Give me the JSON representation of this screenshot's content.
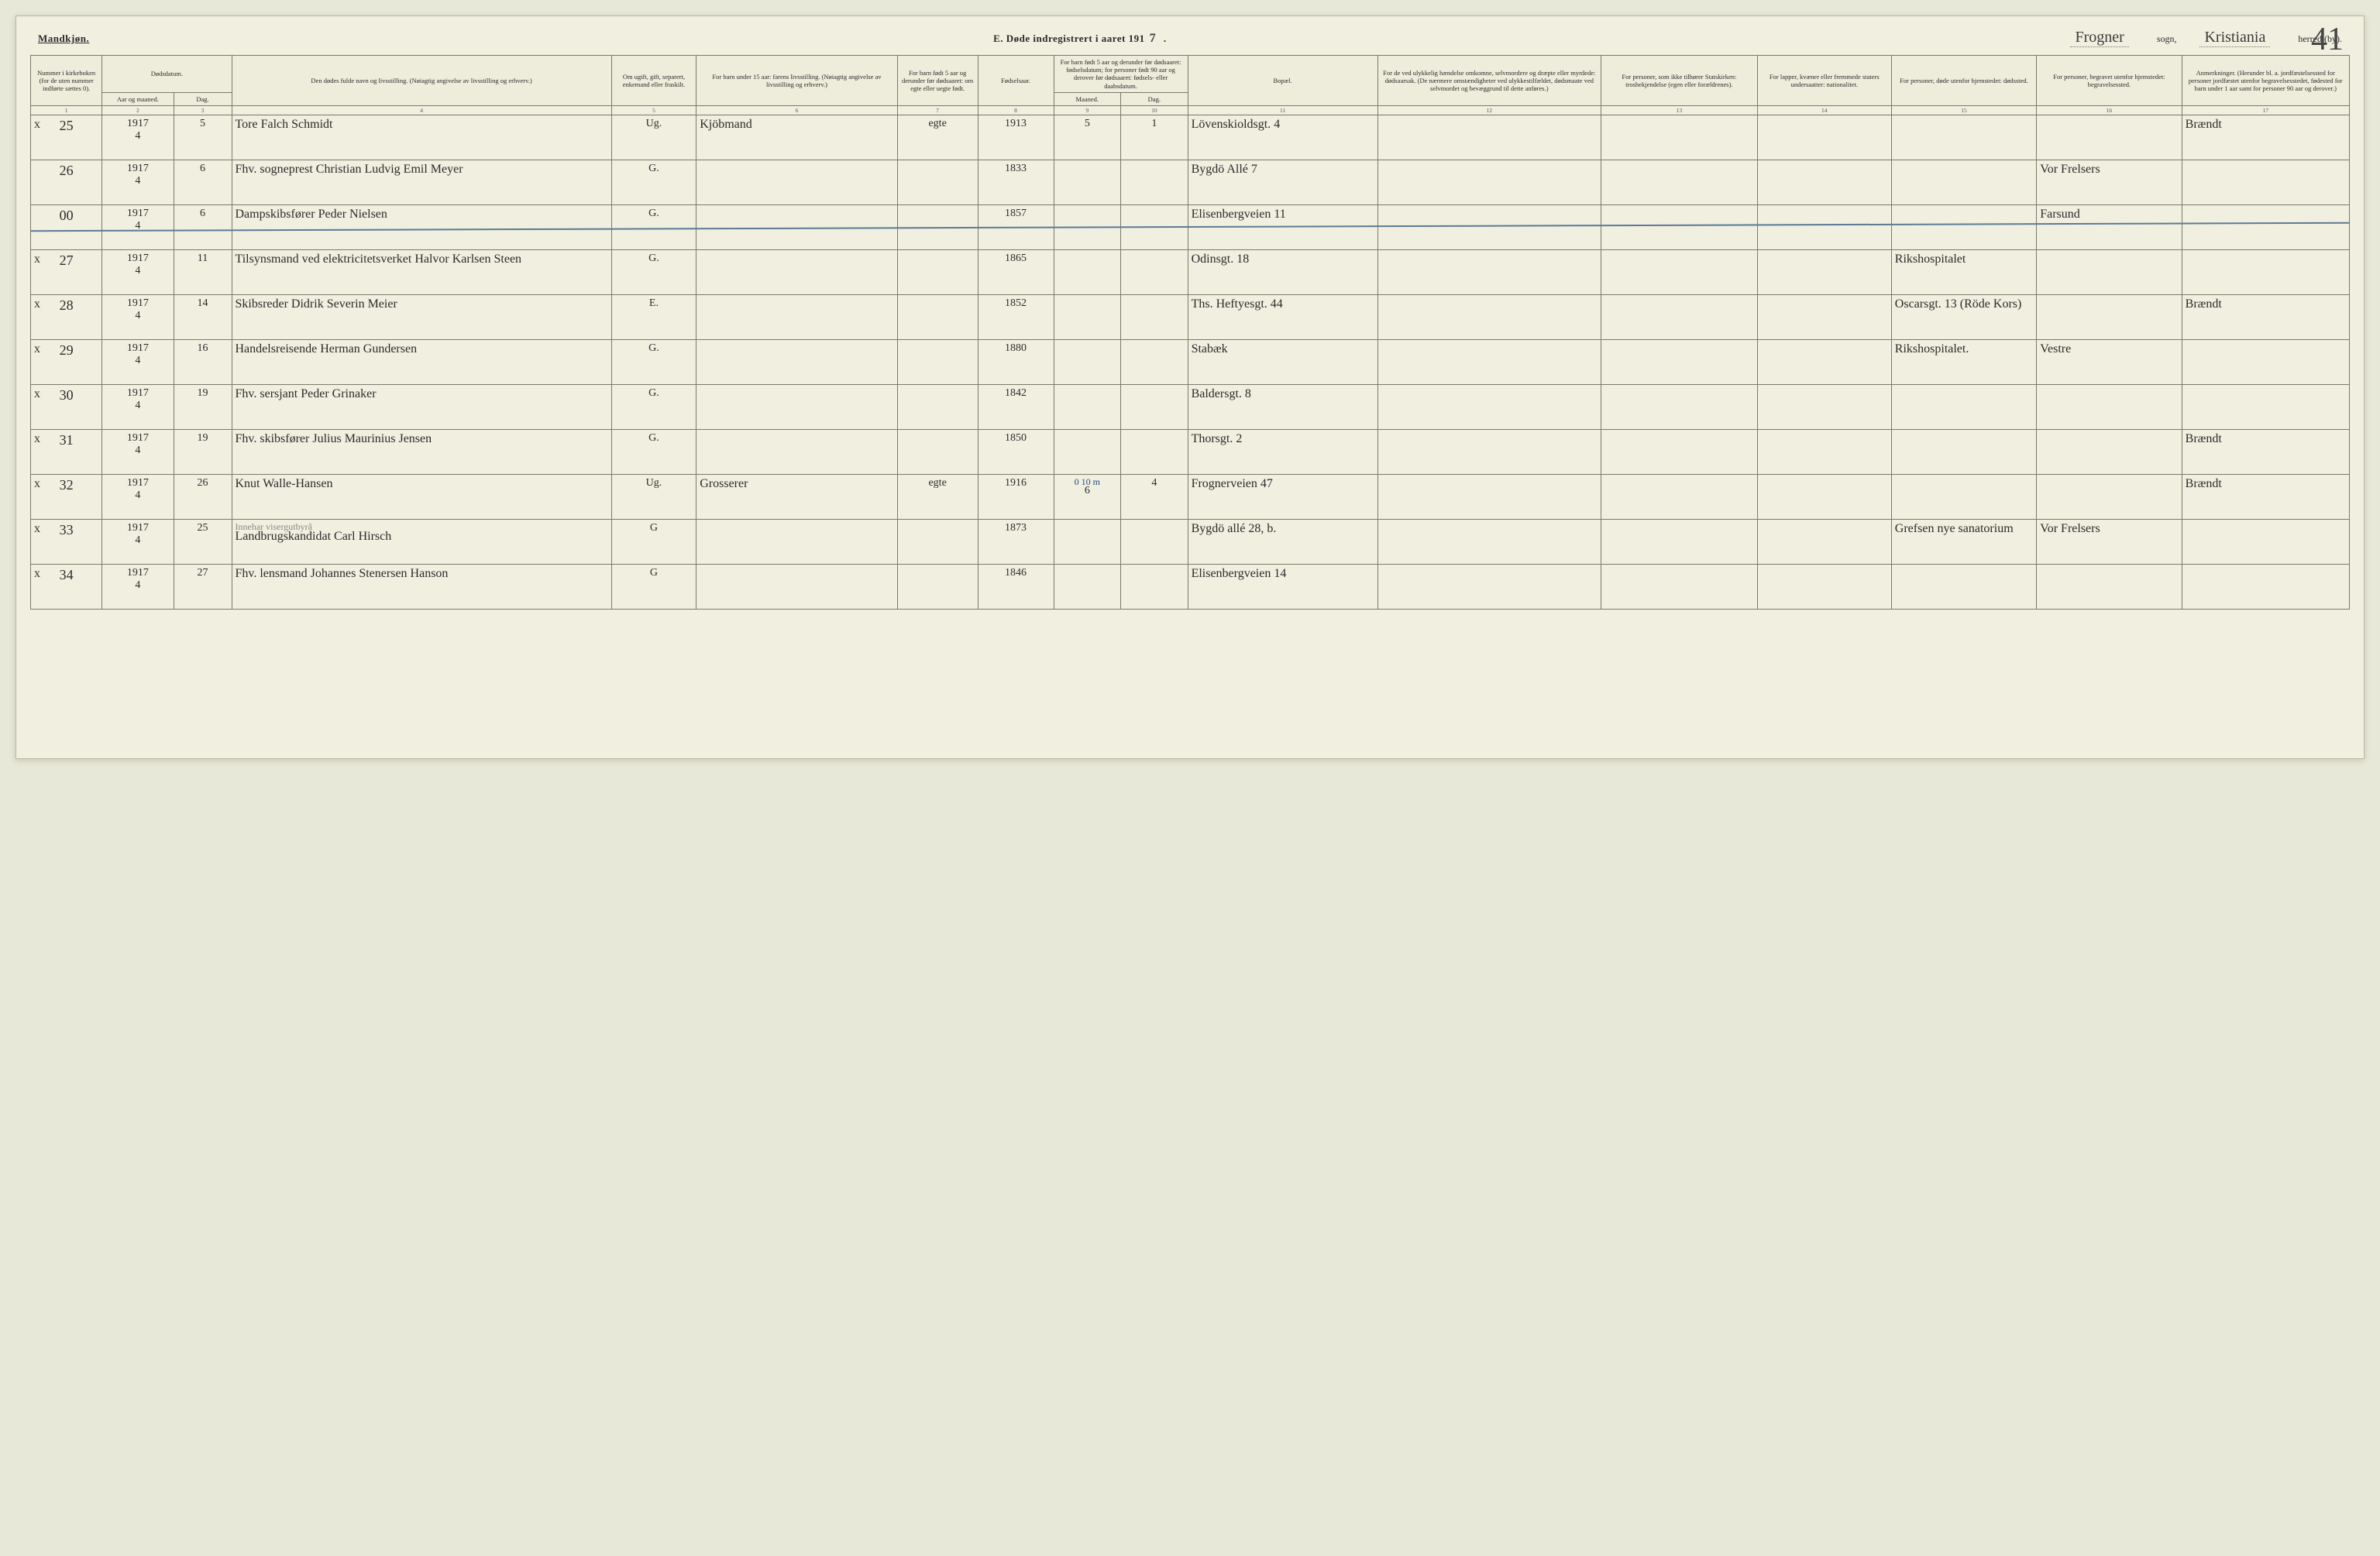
{
  "header": {
    "gender_label": "Mandkjøn.",
    "title_prefix": "E.  Døde indregistrert i aaret 191",
    "year_suffix": "7",
    "parish_script": "Frogner",
    "parish_label": "sogn,",
    "district_script": "Kristiania",
    "district_label": "herred (by).",
    "page_number": "41"
  },
  "columns": {
    "c1": "Nummer i kirke­boken (for de uten nummer indførte sættes 0).",
    "c2_group": "Dødsdatum.",
    "c2": "Aar og maaned.",
    "c3": "Dag.",
    "c4": "Den dødes fulde navn og livsstilling. (Nøiagtig angivelse av livsstilling og erhverv.)",
    "c5": "Om ugift, gift, separert, enke­mand eller fraskilt.",
    "c6": "For barn under 15 aar: farens livsstilling. (Nøiagtig angivelse av livsstilling og erhverv.)",
    "c7": "For barn født 5 aar og derunder før døds­aaret: om egte eller uegte født.",
    "c8": "Fødsels­aar.",
    "c9_10_group": "For barn født 5 aar og der­under før dødsaaret: fødselsdatum; for personer født 90 aar og derover før dødsaaret: fødsels- eller daabsdatum.",
    "c9": "Maaned.",
    "c10": "Dag.",
    "c11": "Bopæl.",
    "c12": "For de ved ulykkelig hændelse omkomne, selvmordere og dræpte eller myrdede: dødsaarsak. (De nærmere omstæn­digheter ved ulykkes­tilfældet, dødsmaate ved selvmordet og bevæggrund til dette anføres.)",
    "c13": "For personer, som ikke tilhører Statskirken: trosbekjendelse (egen eller forældrenes).",
    "c14": "For lapper, kvæner eller fremmede staters undersaatter: nationalitet.",
    "c15": "For personer, døde utenfor hjemstedet: dødssted.",
    "c16": "For personer, begravet utenfor hjemstedet: begravelsessted.",
    "c17": "Anmerkninger. (Herunder bl. a. jordfæstelsessted for personer jordfæstet utenfor begravelses­stedet, fødested for barn under 1 aar samt for personer 90 aar og derover.)"
  },
  "colnums": [
    "1",
    "2",
    "3",
    "4",
    "5",
    "6",
    "7",
    "8",
    "9",
    "10",
    "11",
    "12",
    "13",
    "14",
    "15",
    "16",
    "17"
  ],
  "rows": [
    {
      "x": "x",
      "no": "25",
      "ym": "1917\n4",
      "day": "5",
      "name": "Tore Falch Schmidt",
      "status": "Ug.",
      "father": "Kjöbmand",
      "legit": "egte",
      "birth_year": "1913",
      "bm": "5",
      "bd": "1",
      "residence": "Lövenskiolds­gt. 4",
      "cause": "",
      "faith": "",
      "nat": "",
      "deathplace": "",
      "burial": "",
      "remarks": "Brændt"
    },
    {
      "x": "",
      "no": "26",
      "ym": "1917\n4",
      "day": "6",
      "name": "Fhv. sogneprest Christian Ludvig Emil Meyer",
      "status": "G.",
      "father": "",
      "legit": "",
      "birth_year": "1833",
      "bm": "",
      "bd": "",
      "residence": "Bygdö Allé 7",
      "cause": "",
      "faith": "",
      "nat": "",
      "deathplace": "",
      "burial": "Vor Frelsers",
      "remarks": ""
    },
    {
      "struck": true,
      "x": "",
      "no": "00",
      "ym": "1917\n4",
      "day": "6",
      "name": "Dampskibsfører Peder Nielsen",
      "status": "G.",
      "father": "",
      "legit": "",
      "birth_year": "1857",
      "bm": "",
      "bd": "",
      "residence": "Elisenberg­veien 11",
      "cause": "",
      "faith": "",
      "nat": "",
      "deathplace": "",
      "burial": "Farsund",
      "remarks": ""
    },
    {
      "x": "x",
      "no": "27",
      "ym": "1917\n4",
      "day": "11",
      "name": "Tilsynsmand ved elektri­citetsverket Halvor Karlsen Steen",
      "status": "G.",
      "father": "",
      "legit": "",
      "birth_year": "1865",
      "bm": "",
      "bd": "",
      "residence": "Odinsgt. 18",
      "cause": "",
      "faith": "",
      "nat": "",
      "deathplace": "Rikshospi­talet",
      "burial": "",
      "remarks": ""
    },
    {
      "x": "x",
      "no": "28",
      "ym": "1917\n4",
      "day": "14",
      "name": "Skibsreder Didrik Severin Meier",
      "status": "E.",
      "father": "",
      "legit": "",
      "birth_year": "1852",
      "bm": "",
      "bd": "",
      "residence": "Ths. Heftyes­gt. 44",
      "cause": "",
      "faith": "",
      "nat": "",
      "deathplace": "Oscarsgt. 13 (Röde Kors)",
      "burial": "",
      "remarks": "Brændt"
    },
    {
      "x": "x",
      "no": "29",
      "ym": "1917\n4",
      "day": "16",
      "name": "Handelsreisende Herman Gundersen",
      "status": "G.",
      "father": "",
      "legit": "",
      "birth_year": "1880",
      "bm": "",
      "bd": "",
      "residence": "Stabæk",
      "cause": "",
      "faith": "",
      "nat": "",
      "deathplace": "Rikshospi­talet.",
      "burial": "Vestre",
      "remarks": ""
    },
    {
      "x": "x",
      "no": "30",
      "ym": "1917\n4",
      "day": "19",
      "name": "Fhv. sersjant Peder Grinaker",
      "status": "G.",
      "father": "",
      "legit": "",
      "birth_year": "1842",
      "bm": "",
      "bd": "",
      "residence": "Baldersgt. 8",
      "cause": "",
      "faith": "",
      "nat": "",
      "deathplace": "",
      "burial": "",
      "remarks": ""
    },
    {
      "x": "x",
      "no": "31",
      "ym": "1917\n4",
      "day": "19",
      "name": "Fhv. skibsfører Julius Maurinius Jensen",
      "status": "G.",
      "father": "",
      "legit": "",
      "birth_year": "1850",
      "bm": "",
      "bd": "",
      "residence": "Thorsgt. 2",
      "cause": "",
      "faith": "",
      "nat": "",
      "deathplace": "",
      "burial": "",
      "remarks": "Brændt"
    },
    {
      "x": "x",
      "no": "32",
      "ym": "1917\n4",
      "day": "26",
      "name": "Knut Walle-Hansen",
      "status": "Ug.",
      "father": "Grosserer",
      "legit": "egte",
      "birth_year": "1916",
      "bm": "6",
      "bd": "4",
      "bm_annot": "0 10 m",
      "residence": "Frognerveien 47",
      "cause": "",
      "faith": "",
      "nat": "",
      "deathplace": "",
      "burial": "",
      "remarks": "Brændt"
    },
    {
      "x": "x",
      "no": "33",
      "ym": "1917\n4",
      "day": "25",
      "name": "Landbrugskandidat Carl Hirsch",
      "name_annot": "Innehar visergutbyrå",
      "status": "G",
      "father": "",
      "legit": "",
      "birth_year": "1873",
      "bm": "",
      "bd": "",
      "residence": "Bygdö allé 28, b.",
      "cause": "",
      "faith": "",
      "nat": "",
      "deathplace": "Grefsen nye sanatorium",
      "burial": "Vor Frelsers",
      "remarks": ""
    },
    {
      "x": "x",
      "no": "34",
      "ym": "1917\n4",
      "day": "27",
      "name": "Fhv. lensmand Johannes Stenersen Hanson",
      "status": "G",
      "father": "",
      "legit": "",
      "birth_year": "1846",
      "bm": "",
      "bd": "",
      "residence": "Elisenbergveien 14",
      "cause": "",
      "faith": "",
      "nat": "",
      "deathplace": "",
      "burial": "",
      "remarks": ""
    }
  ],
  "style": {
    "page_bg": "#f0efe0",
    "border_color": "#7a7a6a",
    "script_font": "Brush Script MT",
    "header_fontsize_pt": 9,
    "body_script_fontsize_pt": 14,
    "strike_color": "#5c7a95",
    "annot_color": "#244b82"
  }
}
